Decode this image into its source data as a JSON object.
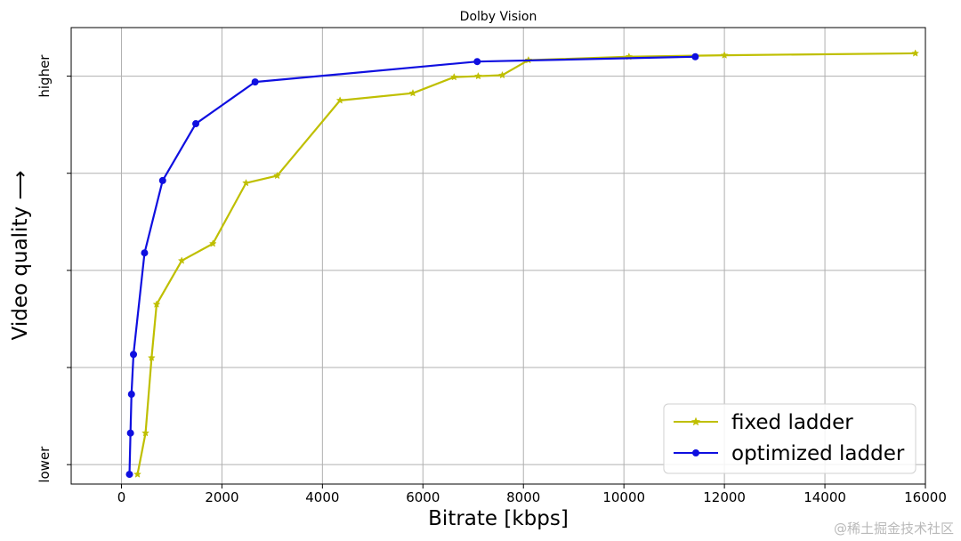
{
  "watermark": "@稀土掘金技术社区",
  "chart_data": {
    "type": "line",
    "title": "Dolby Vision",
    "xlabel": "Bitrate [kbps]",
    "ylabel": "Video quality ⟶",
    "xlim": [
      -1000,
      16000
    ],
    "ylim": [
      0.06,
      1.0
    ],
    "x_ticks": [
      0,
      2000,
      4000,
      6000,
      8000,
      10000,
      12000,
      14000,
      16000
    ],
    "y_ticks": [
      0.1,
      0.3,
      0.5,
      0.7,
      0.9
    ],
    "y_tick_labels": {
      "0.1": "lower",
      "0.9": "higher"
    },
    "grid": true,
    "legend_position": "lower-right",
    "series": [
      {
        "name": "fixed ladder",
        "color": "#bfbf00",
        "marker": "star",
        "x": [
          320,
          480,
          600,
          700,
          1200,
          1820,
          2480,
          3100,
          4350,
          5800,
          6620,
          7100,
          7580,
          8100,
          10100,
          12000,
          15800
        ],
        "y": [
          0.08,
          0.165,
          0.32,
          0.43,
          0.52,
          0.555,
          0.68,
          0.695,
          0.85,
          0.865,
          0.898,
          0.9,
          0.902,
          0.933,
          0.94,
          0.943,
          0.947
        ]
      },
      {
        "name": "optimized ladder",
        "color": "#0f0fe0",
        "marker": "circle",
        "x": [
          160,
          180,
          200,
          240,
          460,
          820,
          1480,
          2660,
          7080,
          11420
        ],
        "y": [
          0.08,
          0.165,
          0.245,
          0.327,
          0.536,
          0.685,
          0.802,
          0.888,
          0.93,
          0.94
        ]
      }
    ]
  }
}
